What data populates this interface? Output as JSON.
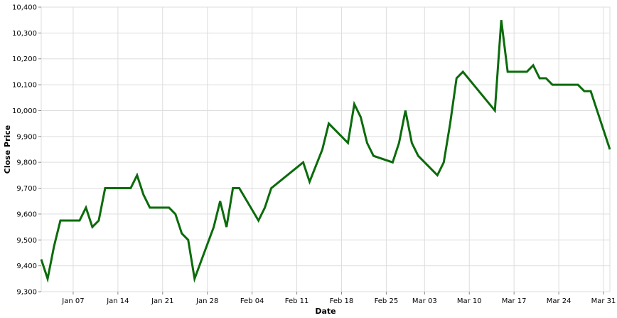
{
  "chart_data": {
    "type": "line",
    "x_label": "Date",
    "y_label": "Close Price",
    "x": [
      "Jan 02",
      "Jan 03",
      "Jan 04",
      "Jan 05",
      "Jan 08",
      "Jan 09",
      "Jan 10",
      "Jan 11",
      "Jan 12",
      "Jan 16",
      "Jan 17",
      "Jan 18",
      "Jan 19",
      "Jan 22",
      "Jan 23",
      "Jan 24",
      "Jan 25",
      "Jan 26",
      "Jan 29",
      "Jan 30",
      "Jan 31",
      "Feb 01",
      "Feb 02",
      "Feb 05",
      "Feb 06",
      "Feb 07",
      "Feb 12",
      "Feb 13",
      "Feb 15",
      "Feb 16",
      "Feb 19",
      "Feb 20",
      "Feb 21",
      "Feb 22",
      "Feb 23",
      "Feb 26",
      "Feb 27",
      "Feb 28",
      "Mar 01",
      "Mar 02",
      "Mar 05",
      "Mar 06",
      "Mar 07",
      "Mar 08",
      "Mar 09",
      "Mar 14",
      "Mar 15",
      "Mar 16",
      "Mar 19",
      "Mar 20",
      "Mar 21",
      "Mar 22",
      "Mar 23",
      "Mar 27",
      "Mar 28",
      "Mar 29",
      "Apr 01"
    ],
    "series": [
      {
        "name": "Close Price",
        "color": "#0b6b0b",
        "values": [
          9425,
          9350,
          9475,
          9575,
          9575,
          9625,
          9550,
          9575,
          9700,
          9700,
          9750,
          9675,
          9625,
          9625,
          9600,
          9525,
          9500,
          9350,
          9550,
          9650,
          9550,
          9700,
          9700,
          9575,
          9625,
          9700,
          9800,
          9725,
          9850,
          9950,
          9875,
          10025,
          9975,
          9875,
          9825,
          9800,
          9875,
          10000,
          9875,
          9825,
          9750,
          9800,
          9950,
          10125,
          10150,
          10000,
          10350,
          10150,
          10150,
          10175,
          10125,
          10125,
          10100,
          10100,
          10075,
          10075,
          9850
        ]
      }
    ],
    "xlim": [
      "Jan 02",
      "Apr 01"
    ],
    "xticks": [
      "Jan 07",
      "Jan 14",
      "Jan 21",
      "Jan 28",
      "Feb 04",
      "Feb 11",
      "Feb 18",
      "Feb 25",
      "Mar 03",
      "Mar 10",
      "Mar 17",
      "Mar 24",
      "Mar 31"
    ],
    "ylim": [
      9300,
      10400
    ],
    "yticks": [
      {
        "value": 9300,
        "label": "9,300"
      },
      {
        "value": 9400,
        "label": "9,400"
      },
      {
        "value": 9500,
        "label": "9,500"
      },
      {
        "value": 9600,
        "label": "9,600"
      },
      {
        "value": 9700,
        "label": "9,700"
      },
      {
        "value": 9800,
        "label": "9,800"
      },
      {
        "value": 9900,
        "label": "9,900"
      },
      {
        "value": 10000,
        "label": "10,000"
      },
      {
        "value": 10100,
        "label": "10,100"
      },
      {
        "value": 10200,
        "label": "10,200"
      },
      {
        "value": 10300,
        "label": "10,300"
      },
      {
        "value": 10400,
        "label": "10,400"
      }
    ],
    "grid": true
  }
}
